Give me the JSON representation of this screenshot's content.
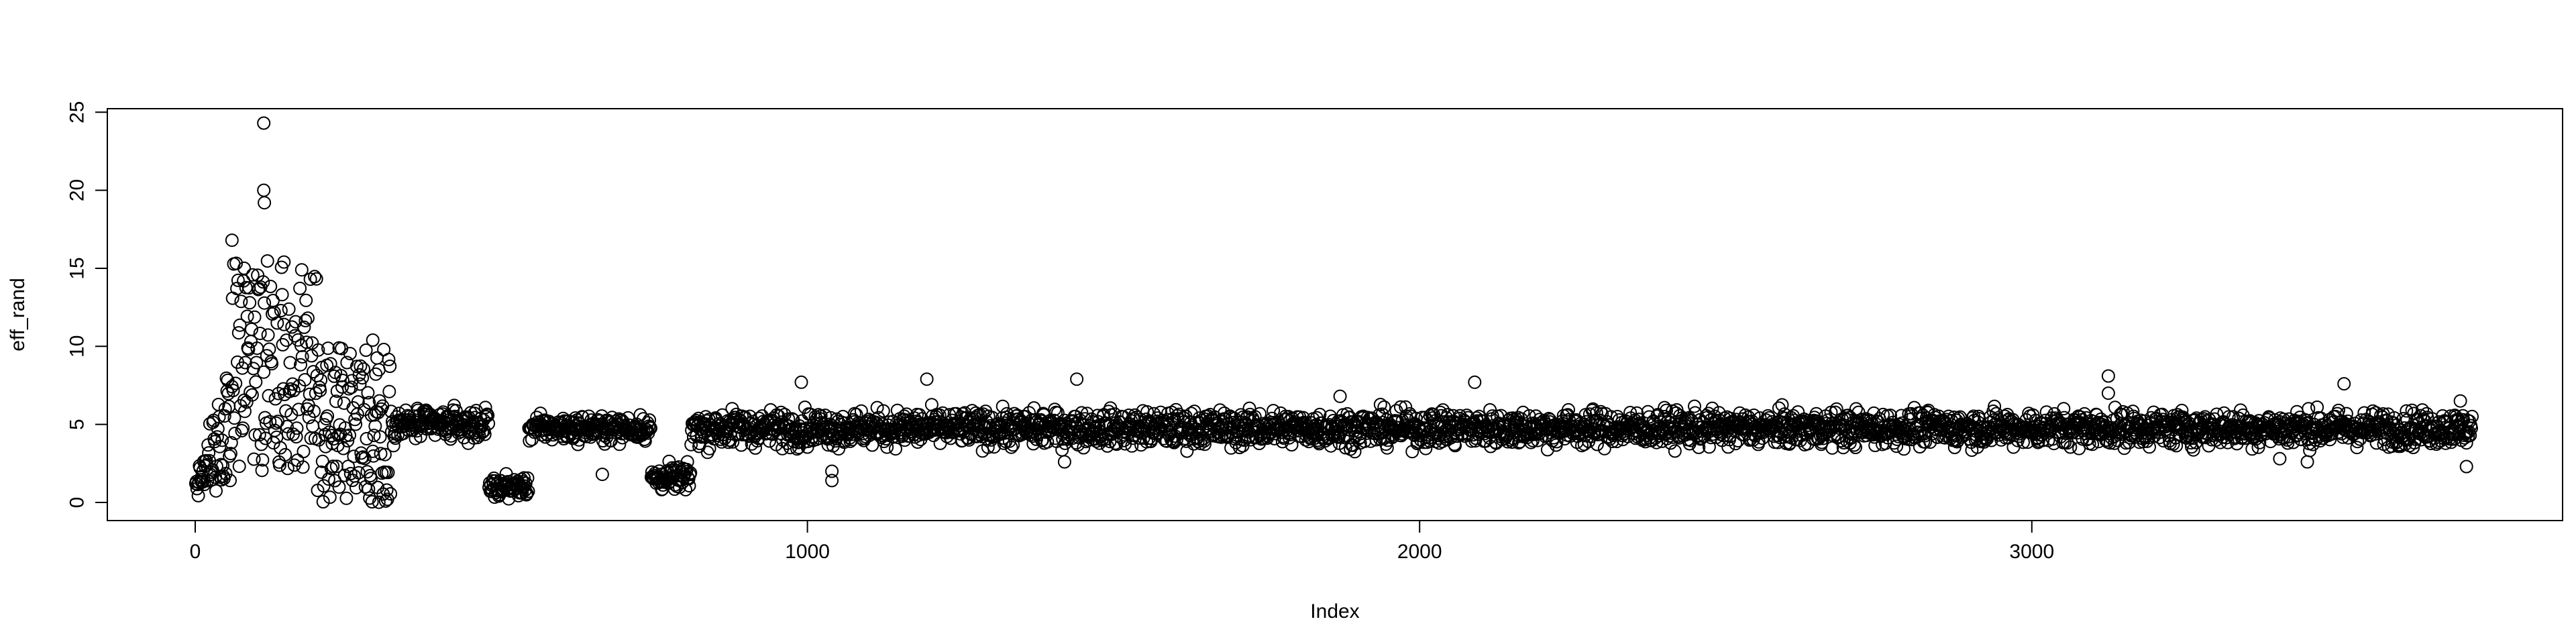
{
  "chart_data": {
    "type": "scatter",
    "title": "",
    "xlabel": "Index",
    "ylabel": "eff_rand",
    "xlim": [
      -150,
      3850
    ],
    "ylim": [
      -1,
      25
    ],
    "x_ticks": [
      0,
      1000,
      2000,
      3000
    ],
    "x_tick_labels": [
      "0",
      "1000",
      "2000",
      "3000"
    ],
    "y_ticks": [
      0,
      5,
      10,
      15,
      20,
      25
    ],
    "y_tick_labels": [
      "0",
      "5",
      "10",
      "15",
      "20",
      "25"
    ],
    "grid": false,
    "legend": "none",
    "marker": "open-circle",
    "n_points": 3720,
    "segments": [
      {
        "x_start": 1,
        "x_end": 60,
        "low": 0.0,
        "high": 10.0,
        "description_level": "ramp"
      },
      {
        "x_start": 60,
        "x_end": 200,
        "low": 2.0,
        "high": 15.5
      },
      {
        "x_start": 200,
        "x_end": 320,
        "low": 0.0,
        "high": 10.0
      },
      {
        "x_start": 320,
        "x_end": 480,
        "low": 3.5,
        "high": 6.5
      },
      {
        "x_start": 480,
        "x_end": 545,
        "low": 0.0,
        "high": 2.0
      },
      {
        "x_start": 545,
        "x_end": 745,
        "low": 3.5,
        "high": 6.0
      },
      {
        "x_start": 745,
        "x_end": 810,
        "low": 0.3,
        "high": 2.8
      },
      {
        "x_start": 810,
        "x_end": 3720,
        "low": 3.0,
        "high": 6.5
      }
    ],
    "notable_points": [
      {
        "x": 112,
        "y": 24.3
      },
      {
        "x": 112,
        "y": 20.0
      },
      {
        "x": 113,
        "y": 19.2
      },
      {
        "x": 60,
        "y": 16.8
      },
      {
        "x": 145,
        "y": 15.4
      },
      {
        "x": 80,
        "y": 15.0
      },
      {
        "x": 290,
        "y": 10.4
      },
      {
        "x": 235,
        "y": 9.9
      },
      {
        "x": 300,
        "y": 8.5
      },
      {
        "x": 665,
        "y": 1.8
      },
      {
        "x": 990,
        "y": 7.7
      },
      {
        "x": 1040,
        "y": 1.4
      },
      {
        "x": 1040,
        "y": 2.0
      },
      {
        "x": 1195,
        "y": 7.9
      },
      {
        "x": 1440,
        "y": 7.9
      },
      {
        "x": 1420,
        "y": 2.6
      },
      {
        "x": 1870,
        "y": 6.8
      },
      {
        "x": 2090,
        "y": 7.7
      },
      {
        "x": 3125,
        "y": 8.1
      },
      {
        "x": 3125,
        "y": 7.0
      },
      {
        "x": 3510,
        "y": 7.6
      },
      {
        "x": 3405,
        "y": 2.8
      },
      {
        "x": 3450,
        "y": 2.6
      },
      {
        "x": 3700,
        "y": 6.5
      },
      {
        "x": 3710,
        "y": 2.3
      },
      {
        "x": 1640,
        "y": 5.4
      },
      {
        "x": 2400,
        "y": 5.5
      }
    ]
  }
}
